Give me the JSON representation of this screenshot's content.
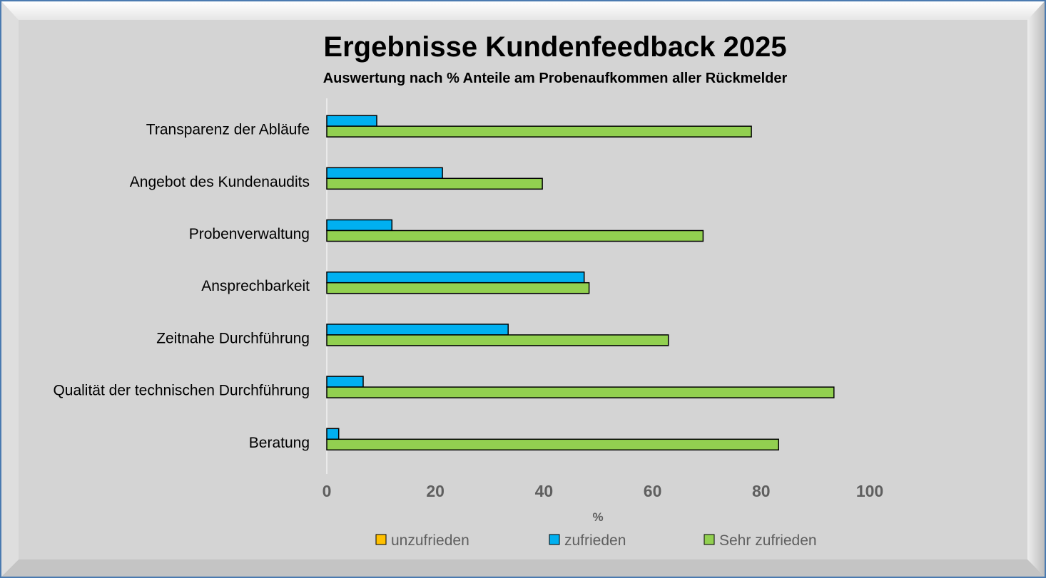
{
  "colors": {
    "background": "#d4d4d4",
    "frame_border": "#4a7ab0",
    "unzufrieden": "#ffc000",
    "zufrieden": "#00b0f0",
    "sehr_zufrieden": "#92d050",
    "bar_stroke": "#000000"
  },
  "chart_data": {
    "type": "bar",
    "orientation": "horizontal",
    "title": "Ergebnisse Kundenfeedback 2025",
    "subtitle": "Auswertung nach % Anteile am Probenaufkommen aller Rückmelder",
    "xlabel": "%",
    "ylabel": "",
    "xlim": [
      0,
      100
    ],
    "xticks": [
      "0",
      "20",
      "40",
      "60",
      "80",
      "100"
    ],
    "grid": false,
    "legend_position": "bottom",
    "categories": [
      "Transparenz der Abläufe",
      "Angebot des Kundenaudits",
      "Probenverwaltung",
      "Ansprechbarkeit",
      "Zeitnahe Durchführung",
      "Qualität der technischen Durchführung",
      "Beratung"
    ],
    "series": [
      {
        "name": "unzufrieden",
        "color": "#ffc000",
        "values": [
          0,
          0,
          0,
          0,
          0,
          0,
          0
        ]
      },
      {
        "name": "zufrieden",
        "color": "#00b0f0",
        "values": [
          9.2,
          21.3,
          12,
          47.4,
          33.4,
          6.7,
          2.2
        ]
      },
      {
        "name": "Sehr zufrieden",
        "color": "#92d050",
        "values": [
          78.2,
          39.7,
          69.3,
          48.3,
          62.9,
          93.4,
          83.2
        ]
      }
    ]
  }
}
